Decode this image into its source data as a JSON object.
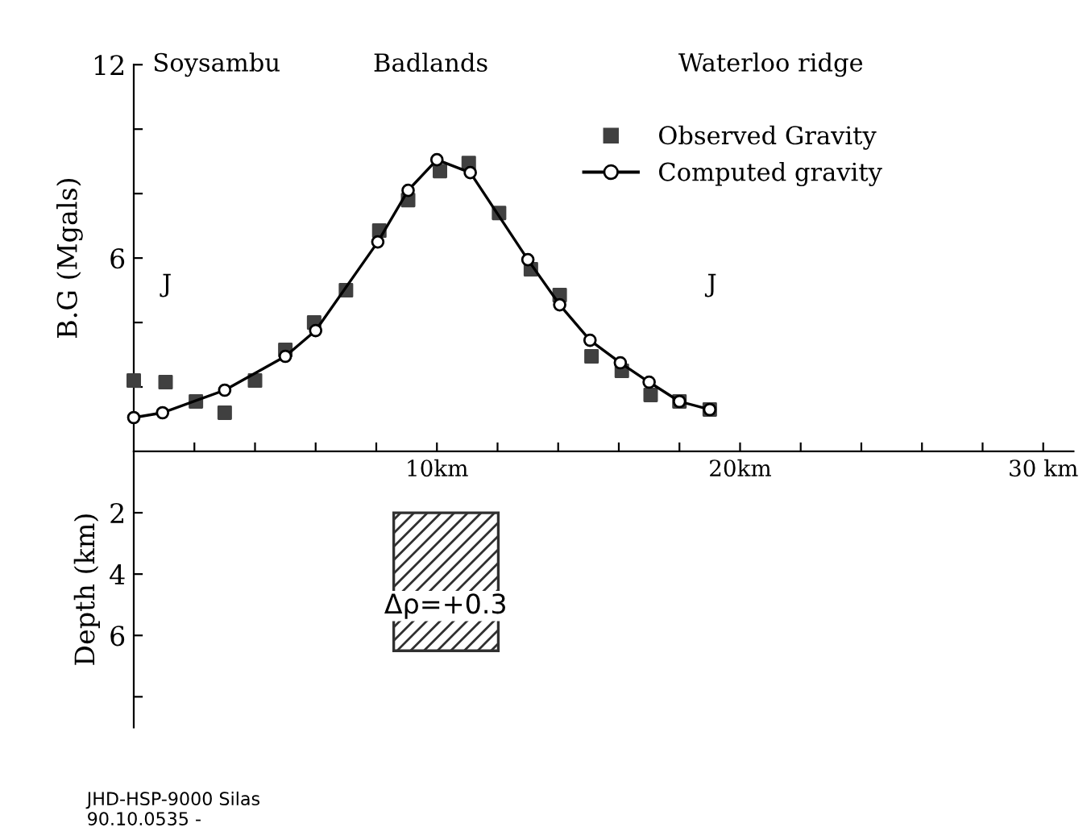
{
  "chart_data": [
    {
      "type": "line",
      "ylabel": "B.G (Mgals)",
      "xlim": [
        0,
        31
      ],
      "ylim": [
        0,
        12
      ],
      "xticks": [
        {
          "value": 2,
          "label": null
        },
        {
          "value": 4,
          "label": null
        },
        {
          "value": 6,
          "label": null
        },
        {
          "value": 8,
          "label": null
        },
        {
          "value": 10,
          "label": "10km"
        },
        {
          "value": 12,
          "label": null
        },
        {
          "value": 14,
          "label": null
        },
        {
          "value": 16,
          "label": null
        },
        {
          "value": 18,
          "label": null
        },
        {
          "value": 20,
          "label": "20km"
        },
        {
          "value": 22,
          "label": null
        },
        {
          "value": 24,
          "label": null
        },
        {
          "value": 26,
          "label": null
        },
        {
          "value": 28,
          "label": null
        },
        {
          "value": 30,
          "label": "30 km"
        }
      ],
      "yticks": [
        {
          "value": 2,
          "label": null
        },
        {
          "value": 4,
          "label": null
        },
        6,
        {
          "value": 8,
          "label": null
        },
        {
          "value": 10,
          "label": null
        },
        12
      ],
      "series": [
        {
          "name": "Observed Gravity",
          "type": "scatter",
          "marker": "square",
          "color": "#404040",
          "x": [
            0.0,
            1.05,
            2.05,
            3.0,
            4.0,
            5.0,
            5.95,
            7.0,
            8.1,
            9.05,
            10.1,
            11.05,
            12.05,
            13.1,
            14.05,
            15.1,
            16.1,
            17.05,
            18.0,
            19.0
          ],
          "values": [
            2.2,
            2.15,
            1.55,
            1.2,
            2.2,
            3.15,
            4.0,
            5.0,
            6.85,
            7.8,
            8.7,
            8.95,
            7.4,
            5.65,
            4.85,
            2.95,
            2.5,
            1.75,
            1.55,
            1.3
          ]
        },
        {
          "name": "Computed gravity",
          "marker": "circle",
          "line_style": "solid",
          "color": "#000000",
          "x": [
            0.0,
            0.95,
            3.0,
            5.0,
            6.0,
            8.05,
            9.05,
            10.0,
            11.1,
            13.0,
            14.05,
            15.05,
            16.05,
            17.0,
            18.0,
            19.0
          ],
          "values": [
            1.05,
            1.2,
            1.9,
            2.95,
            3.75,
            6.5,
            8.1,
            9.05,
            8.65,
            5.95,
            4.55,
            3.45,
            2.75,
            2.15,
            1.55,
            1.3
          ]
        }
      ],
      "annotations": [
        "Soysambu",
        "Badlands",
        "Waterloo ridge",
        "J",
        "J"
      ],
      "legend": "top right",
      "grid": false
    },
    {
      "type": "bar",
      "ylabel": "Depth (km)",
      "xlim": [
        0,
        31
      ],
      "ylim": [
        9,
        0
      ],
      "yticks": [
        2,
        4,
        6,
        {
          "value": 8,
          "label": null
        }
      ],
      "series": [
        {
          "x": [
            10.3
          ],
          "base": [
            2
          ],
          "values": [
            4.5
          ],
          "color": "#303030"
        }
      ],
      "annotations": [
        "Δρ=+0.3",
        "JHD-HSP-9000 Silas\n90.10.0535 -"
      ],
      "tick_labels": "y"
    }
  ]
}
